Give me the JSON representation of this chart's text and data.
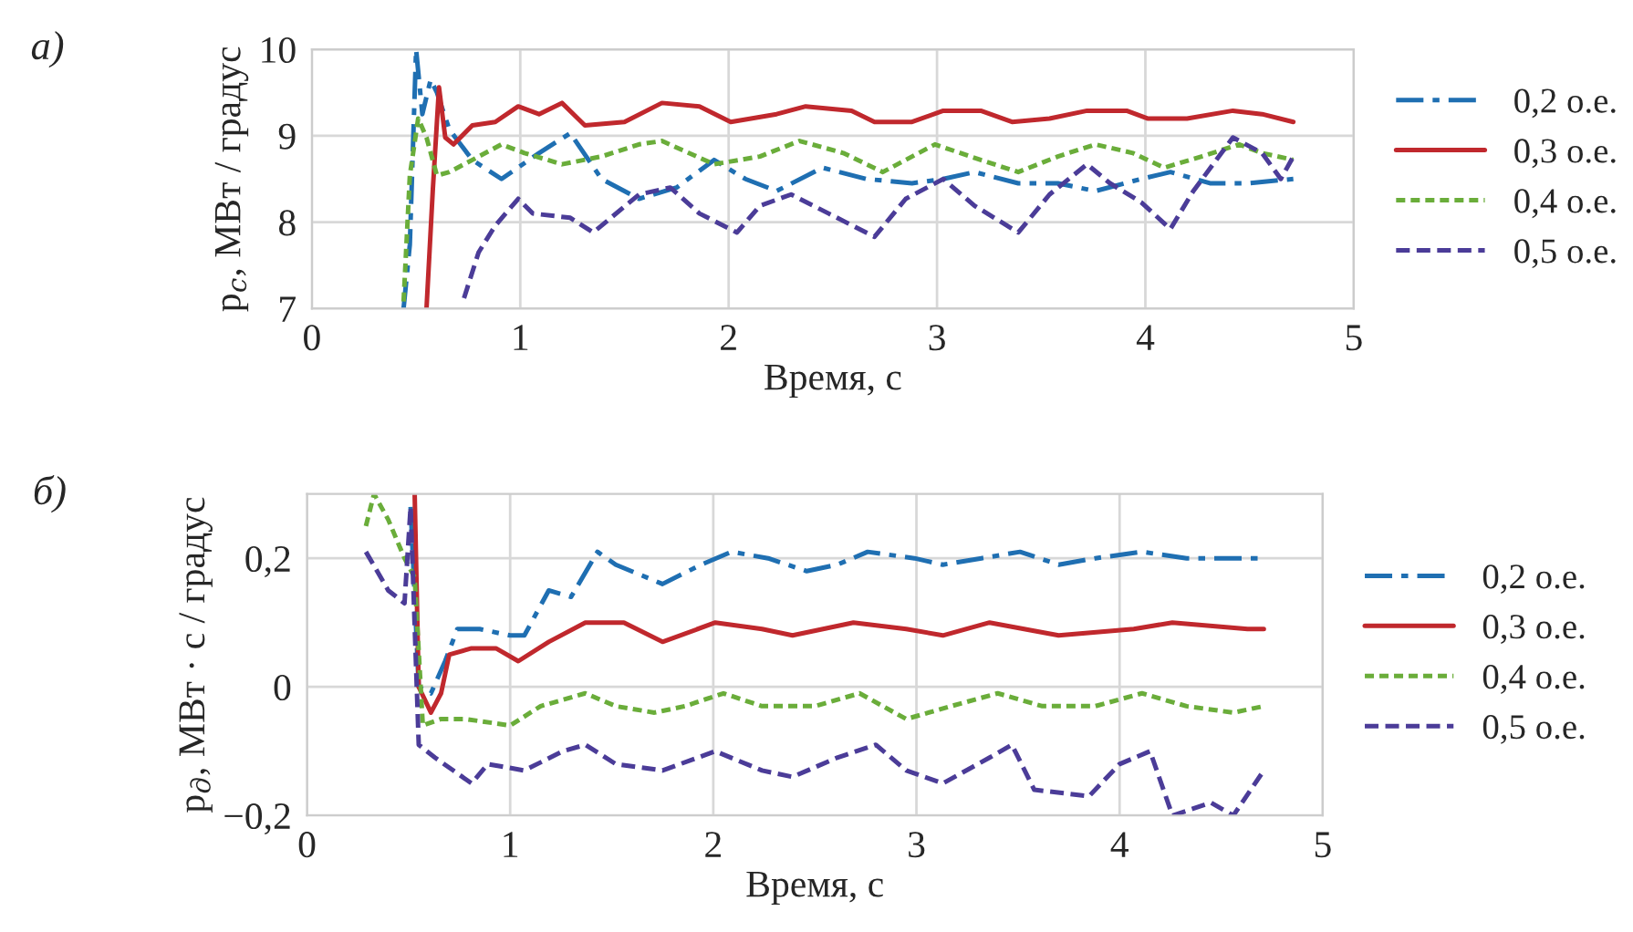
{
  "chart_data": [
    {
      "type": "line",
      "title": "а)",
      "xlabel": "Время, с",
      "ylabel": "p$_{с}$, МВт / градус",
      "xlim": [
        0,
        5
      ],
      "xticks": [
        0,
        1,
        2,
        3,
        4,
        5
      ],
      "ylim": [
        7,
        10
      ],
      "yticks": [
        7,
        8,
        9,
        10
      ],
      "grid": true,
      "legend": "right",
      "series": [
        {
          "name": "0,2 о.е.",
          "color": "#1f6fb2",
          "line_style": "dashdot",
          "x": [
            0.44,
            0.47,
            0.5,
            0.53,
            0.57,
            0.6,
            0.66,
            0.77,
            0.91,
            1.09,
            1.24,
            1.39,
            1.57,
            1.75,
            1.93,
            2.08,
            2.23,
            2.45,
            2.66,
            2.88,
            3.03,
            3.18,
            3.39,
            3.58,
            3.76,
            3.98,
            4.12,
            4.31,
            4.49,
            4.71
          ],
          "values": [
            7.0,
            7.74,
            10.0,
            9.25,
            9.65,
            9.5,
            9.07,
            8.72,
            8.5,
            8.8,
            9.03,
            8.5,
            8.27,
            8.4,
            8.72,
            8.5,
            8.36,
            8.63,
            8.5,
            8.45,
            8.5,
            8.58,
            8.45,
            8.45,
            8.36,
            8.5,
            8.58,
            8.45,
            8.45,
            8.5
          ]
        },
        {
          "name": "0,3 о.е.",
          "color": "#c0282d",
          "line_style": "solid",
          "x": [
            0.55,
            0.58,
            0.61,
            0.64,
            0.68,
            0.77,
            0.88,
            0.99,
            1.09,
            1.2,
            1.31,
            1.5,
            1.68,
            1.86,
            2.01,
            2.23,
            2.37,
            2.59,
            2.7,
            2.88,
            3.03,
            3.21,
            3.36,
            3.54,
            3.72,
            3.91,
            4.01,
            4.2,
            4.42,
            4.56,
            4.71
          ],
          "values": [
            7.0,
            8.36,
            9.56,
            8.98,
            8.9,
            9.12,
            9.16,
            9.34,
            9.25,
            9.38,
            9.12,
            9.16,
            9.38,
            9.34,
            9.16,
            9.25,
            9.34,
            9.29,
            9.16,
            9.16,
            9.29,
            9.29,
            9.16,
            9.2,
            9.29,
            9.29,
            9.2,
            9.2,
            9.29,
            9.25,
            9.16
          ]
        },
        {
          "name": "0,4 о.е.",
          "color": "#6aad3a",
          "line_style": "dotted",
          "x": [
            0.44,
            0.47,
            0.51,
            0.55,
            0.6,
            0.66,
            0.77,
            0.91,
            1.02,
            1.2,
            1.39,
            1.57,
            1.68,
            1.93,
            2.15,
            2.34,
            2.55,
            2.74,
            2.99,
            3.21,
            3.39,
            3.58,
            3.76,
            3.94,
            4.09,
            4.27,
            4.45,
            4.56,
            4.71
          ],
          "values": [
            7.08,
            8.54,
            9.2,
            8.98,
            8.54,
            8.58,
            8.72,
            8.9,
            8.8,
            8.67,
            8.76,
            8.9,
            8.94,
            8.67,
            8.76,
            8.94,
            8.8,
            8.58,
            8.9,
            8.72,
            8.58,
            8.76,
            8.9,
            8.8,
            8.63,
            8.76,
            8.9,
            8.8,
            8.72
          ]
        },
        {
          "name": "0,5 о.е.",
          "color": "#4b3c98",
          "line_style": "dashed",
          "x": [
            0.73,
            0.8,
            0.88,
            0.99,
            1.06,
            1.24,
            1.35,
            1.57,
            1.72,
            1.86,
            2.04,
            2.15,
            2.3,
            2.48,
            2.7,
            2.85,
            3.03,
            3.18,
            3.39,
            3.54,
            3.72,
            3.83,
            3.98,
            4.12,
            4.23,
            4.42,
            4.56,
            4.65,
            4.71
          ],
          "values": [
            7.12,
            7.65,
            7.96,
            8.27,
            8.1,
            8.05,
            7.88,
            8.32,
            8.4,
            8.1,
            7.88,
            8.19,
            8.32,
            8.1,
            7.83,
            8.27,
            8.5,
            8.19,
            7.88,
            8.32,
            8.67,
            8.45,
            8.23,
            7.92,
            8.36,
            8.98,
            8.8,
            8.5,
            8.76
          ]
        }
      ]
    },
    {
      "type": "line",
      "title": "б)",
      "xlabel": "Время, с",
      "ylabel": "p$_{д}$, МВт · с / градус",
      "xlim": [
        0,
        5
      ],
      "xticks": [
        0,
        1,
        2,
        3,
        4,
        5
      ],
      "ylim": [
        -0.2,
        0.3
      ],
      "yticks": [
        {
          "value": -0.2,
          "label": "−0,2"
        },
        {
          "value": 0,
          "label": "0"
        },
        {
          "value": 0.2,
          "label": "0,2"
        }
      ],
      "grid": true,
      "legend": "right",
      "series": [
        {
          "name": "0,2 о.е.",
          "color": "#1f6fb2",
          "line_style": "dashdot",
          "x": [
            0.51,
            0.55,
            0.61,
            0.68,
            0.74,
            0.85,
            1.0,
            1.07,
            1.19,
            1.3,
            1.43,
            1.52,
            1.75,
            1.94,
            2.09,
            2.27,
            2.46,
            2.61,
            2.76,
            2.99,
            3.13,
            3.32,
            3.51,
            3.7,
            3.88,
            4.11,
            4.33,
            4.52,
            4.71
          ],
          "values": [
            0.28,
            0,
            -0.01,
            0.04,
            0.09,
            0.09,
            0.08,
            0.08,
            0.15,
            0.14,
            0.21,
            0.19,
            0.16,
            0.19,
            0.21,
            0.2,
            0.18,
            0.19,
            0.21,
            0.2,
            0.19,
            0.2,
            0.21,
            0.19,
            0.2,
            0.21,
            0.2,
            0.2,
            0.2
          ]
        },
        {
          "name": "0,3 о.е.",
          "color": "#c0282d",
          "line_style": "solid",
          "x": [
            0.53,
            0.55,
            0.61,
            0.66,
            0.7,
            0.81,
            0.93,
            1.04,
            1.19,
            1.37,
            1.56,
            1.75,
            2.01,
            2.24,
            2.39,
            2.69,
            2.95,
            3.13,
            3.36,
            3.7,
            4.07,
            4.26,
            4.63,
            4.71
          ],
          "values": [
            0.3,
            0,
            -0.04,
            -0.01,
            0.05,
            0.06,
            0.06,
            0.04,
            0.07,
            0.1,
            0.1,
            0.07,
            0.1,
            0.09,
            0.08,
            0.1,
            0.09,
            0.08,
            0.1,
            0.08,
            0.09,
            0.1,
            0.09,
            0.09
          ]
        },
        {
          "name": "0,4 о.е.",
          "color": "#6aad3a",
          "line_style": "dotted",
          "x": [
            0.29,
            0.33,
            0.4,
            0.48,
            0.53,
            0.57,
            0.66,
            0.78,
            1.0,
            1.15,
            1.37,
            1.52,
            1.71,
            1.86,
            2.05,
            2.24,
            2.5,
            2.72,
            2.95,
            3.17,
            3.4,
            3.62,
            3.88,
            4.11,
            4.33,
            4.56,
            4.71
          ],
          "values": [
            0.25,
            0.3,
            0.26,
            0.2,
            0.17,
            -0.06,
            -0.05,
            -0.05,
            -0.06,
            -0.03,
            -0.01,
            -0.03,
            -0.04,
            -0.03,
            -0.01,
            -0.03,
            -0.03,
            -0.01,
            -0.05,
            -0.03,
            -0.01,
            -0.03,
            -0.03,
            -0.01,
            -0.03,
            -0.04,
            -0.03
          ]
        },
        {
          "name": "0,5 о.е.",
          "color": "#4b3c98",
          "line_style": "dashed",
          "x": [
            0.29,
            0.4,
            0.48,
            0.51,
            0.55,
            0.63,
            0.81,
            0.89,
            1.07,
            1.26,
            1.37,
            1.52,
            1.75,
            2.01,
            2.24,
            2.39,
            2.61,
            2.8,
            2.95,
            3.13,
            3.36,
            3.47,
            3.58,
            3.85,
            4.0,
            4.15,
            4.26,
            4.45,
            4.56,
            4.71
          ],
          "values": [
            0.21,
            0.15,
            0.13,
            0.28,
            -0.09,
            -0.11,
            -0.15,
            -0.12,
            -0.13,
            -0.1,
            -0.09,
            -0.12,
            -0.13,
            -0.1,
            -0.13,
            -0.14,
            -0.11,
            -0.09,
            -0.13,
            -0.15,
            -0.11,
            -0.09,
            -0.16,
            -0.17,
            -0.12,
            -0.1,
            -0.2,
            -0.18,
            -0.2,
            -0.13
          ]
        }
      ]
    }
  ]
}
